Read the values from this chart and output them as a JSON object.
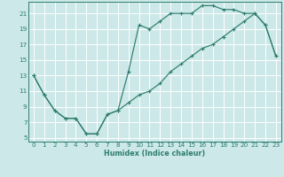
{
  "xlabel": "Humidex (Indice chaleur)",
  "bg_color": "#cce8e8",
  "grid_color": "#ffffff",
  "line_color": "#2d7d6e",
  "xlim": [
    -0.5,
    23.5
  ],
  "ylim": [
    4.5,
    22.5
  ],
  "xticks": [
    0,
    1,
    2,
    3,
    4,
    5,
    6,
    7,
    8,
    9,
    10,
    11,
    12,
    13,
    14,
    15,
    16,
    17,
    18,
    19,
    20,
    21,
    22,
    23
  ],
  "yticks": [
    5,
    7,
    9,
    11,
    13,
    15,
    17,
    19,
    21
  ],
  "line1_x": [
    0,
    1,
    2,
    3,
    4,
    5,
    6,
    7,
    8,
    9,
    10,
    11,
    12,
    13,
    14,
    15,
    16,
    17,
    18,
    19,
    20,
    21,
    22,
    23
  ],
  "line1_y": [
    13,
    10.5,
    8.5,
    7.5,
    7.5,
    5.5,
    5.5,
    8.0,
    8.5,
    13.5,
    19.5,
    19.0,
    20.0,
    21.0,
    21.0,
    21.0,
    22.0,
    22.0,
    21.5,
    21.5,
    21.0,
    21.0,
    19.5,
    15.5
  ],
  "line2_x": [
    0,
    1,
    2,
    3,
    4,
    5,
    6,
    7,
    8,
    9,
    10,
    11,
    12,
    13,
    14,
    15,
    16,
    17,
    18,
    19,
    20,
    21,
    22,
    23
  ],
  "line2_y": [
    13,
    10.5,
    8.5,
    7.5,
    7.5,
    5.5,
    5.5,
    8.0,
    8.5,
    9.5,
    10.5,
    11.0,
    12.0,
    13.5,
    14.5,
    15.5,
    16.5,
    17.0,
    18.0,
    19.0,
    20.0,
    21.0,
    19.5,
    15.5
  ]
}
